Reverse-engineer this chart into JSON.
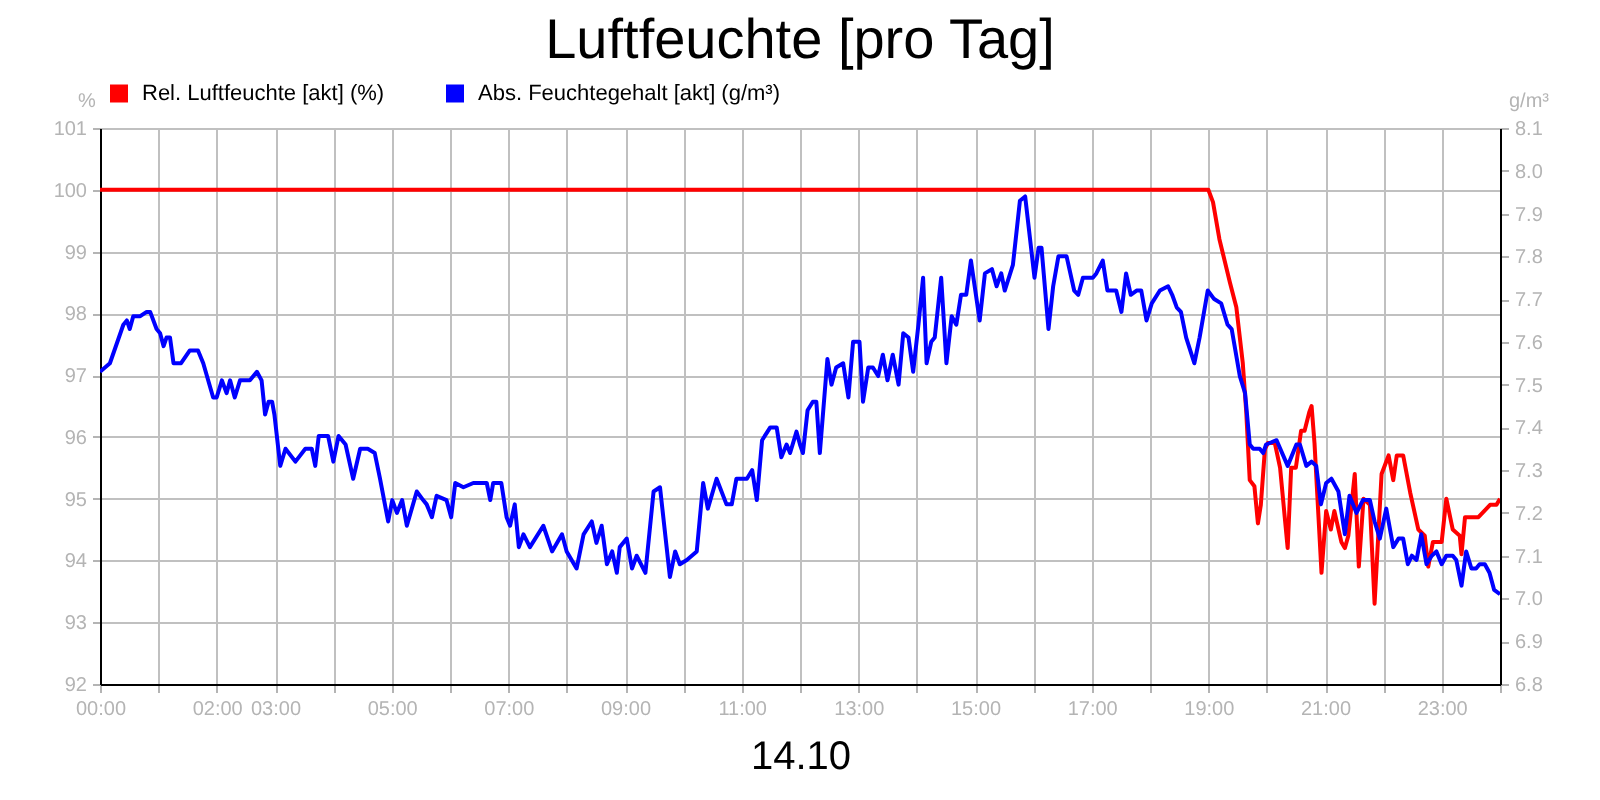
{
  "chart_data": {
    "type": "line",
    "title": "Luftfeuchte [pro Tag]",
    "xlabel": "14.10",
    "ylabel": "%",
    "y2label": "g/m³",
    "xlim": [
      0,
      24
    ],
    "xticks": [
      {
        "value": 0,
        "label": "00:00"
      },
      {
        "value": 1,
        "label": null
      },
      {
        "value": 2,
        "label": "02:00"
      },
      {
        "value": 3,
        "label": "03:00"
      },
      {
        "value": 4,
        "label": null
      },
      {
        "value": 5,
        "label": "05:00"
      },
      {
        "value": 6,
        "label": null
      },
      {
        "value": 7,
        "label": "07:00"
      },
      {
        "value": 8,
        "label": null
      },
      {
        "value": 9,
        "label": "09:00"
      },
      {
        "value": 10,
        "label": null
      },
      {
        "value": 11,
        "label": "11:00"
      },
      {
        "value": 12,
        "label": null
      },
      {
        "value": 13,
        "label": "13:00"
      },
      {
        "value": 14,
        "label": null
      },
      {
        "value": 15,
        "label": "15:00"
      },
      {
        "value": 16,
        "label": null
      },
      {
        "value": 17,
        "label": "17:00"
      },
      {
        "value": 18,
        "label": null
      },
      {
        "value": 19,
        "label": "19:00"
      },
      {
        "value": 20,
        "label": null
      },
      {
        "value": 21,
        "label": "21:00"
      },
      {
        "value": 22,
        "label": null
      },
      {
        "value": 23,
        "label": "23:00"
      },
      {
        "value": 24,
        "label": null
      }
    ],
    "ylim": [
      92,
      101
    ],
    "yticks": [
      92,
      93,
      94,
      95,
      96,
      97,
      98,
      99,
      100,
      101
    ],
    "y2lim": [
      6.8,
      8.1
    ],
    "y2ticks": [
      6.8,
      6.9,
      {
        "value": 7.0,
        "label": "7.0"
      },
      7.1,
      7.2,
      7.3,
      7.4,
      7.5,
      7.6,
      7.7,
      7.8,
      7.9,
      {
        "value": 8.0,
        "label": "8.0"
      },
      8.1
    ],
    "grid": true,
    "legend": "top left",
    "series": [
      {
        "name": "Rel. Luftfeuchte [akt] (%)",
        "color": "#ff0000",
        "axis": "y",
        "x": [
          0,
          19.0,
          19.08,
          19.19,
          19.37,
          19.48,
          19.59,
          19.65,
          19.71,
          19.79,
          19.85,
          19.9,
          19.97,
          20.02,
          20.14,
          20.23,
          20.31,
          20.36,
          20.42,
          20.5,
          20.59,
          20.65,
          20.73,
          20.77,
          20.82,
          20.86,
          20.94,
          21.02,
          21.1,
          21.16,
          21.28,
          21.34,
          21.4,
          21.51,
          21.58,
          21.66,
          21.77,
          21.85,
          21.97,
          22.09,
          22.17,
          22.23,
          22.34,
          22.46,
          22.6,
          22.71,
          22.77,
          22.85,
          23.0,
          23.08,
          23.19,
          23.31,
          23.34,
          23.4,
          23.54,
          23.63,
          23.83,
          23.94,
          24.0
        ],
        "values": [
          100,
          100,
          99.8,
          99.2,
          98.5,
          98.1,
          97.2,
          96.4,
          95.3,
          95.2,
          94.6,
          94.9,
          95.8,
          95.9,
          95.9,
          95.5,
          94.7,
          94.2,
          95.5,
          95.5,
          96.1,
          96.1,
          96.4,
          96.5,
          95.9,
          95.2,
          93.8,
          94.8,
          94.5,
          94.8,
          94.3,
          94.2,
          94.4,
          95.4,
          93.9,
          95.0,
          94.9,
          93.3,
          95.4,
          95.7,
          95.3,
          95.7,
          95.7,
          95.1,
          94.5,
          94.4,
          93.9,
          94.3,
          94.3,
          95.0,
          94.5,
          94.4,
          94.1,
          94.7,
          94.7,
          94.7,
          94.9,
          94.9,
          95.0
        ]
      },
      {
        "name": "Abs. Feuchtegehalt [akt] (g/m³)",
        "color": "#0000ff",
        "axis": "y2",
        "x": [
          0,
          0.17,
          0.4,
          0.46,
          0.51,
          0.57,
          0.69,
          0.8,
          0.86,
          0.97,
          1.03,
          1.09,
          1.14,
          1.2,
          1.26,
          1.39,
          1.54,
          1.68,
          1.77,
          1.94,
          2.0,
          2.09,
          2.17,
          2.23,
          2.31,
          2.4,
          2.57,
          2.69,
          2.77,
          2.83,
          2.89,
          2.95,
          2.99,
          3.09,
          3.18,
          3.35,
          3.52,
          3.63,
          3.69,
          3.75,
          3.91,
          4.0,
          4.09,
          4.21,
          4.34,
          4.46,
          4.59,
          4.71,
          4.8,
          4.94,
          5.01,
          5.09,
          5.18,
          5.26,
          5.43,
          5.54,
          5.6,
          5.69,
          5.77,
          5.94,
          6.02,
          6.09,
          6.23,
          6.4,
          6.63,
          6.69,
          6.74,
          6.88,
          6.97,
          7.03,
          7.11,
          7.18,
          7.26,
          7.37,
          7.6,
          7.75,
          7.92,
          8.0,
          8.17,
          8.29,
          8.43,
          8.51,
          8.6,
          8.69,
          8.78,
          8.86,
          8.91,
          9.03,
          9.12,
          9.2,
          9.35,
          9.49,
          9.6,
          9.77,
          9.86,
          9.94,
          10.06,
          10.23,
          10.34,
          10.42,
          10.57,
          10.74,
          10.83,
          10.91,
          11.09,
          11.18,
          11.26,
          11.35,
          11.49,
          11.6,
          11.68,
          11.77,
          11.83,
          11.94,
          12.0,
          12.05,
          12.13,
          12.22,
          12.28,
          12.34,
          12.47,
          12.54,
          12.62,
          12.74,
          12.83,
          12.91,
          13.02,
          13.08,
          13.17,
          13.25,
          13.34,
          13.42,
          13.5,
          13.59,
          13.69,
          13.77,
          13.86,
          13.94,
          14.03,
          14.11,
          14.17,
          14.25,
          14.31,
          14.42,
          14.51,
          14.6,
          14.68,
          14.76,
          14.85,
          14.93,
          15.08,
          15.17,
          15.29,
          15.37,
          15.45,
          15.51,
          15.65,
          15.77,
          15.86,
          16.02,
          16.09,
          16.14,
          16.26,
          16.34,
          16.43,
          16.57,
          16.7,
          16.77,
          16.85,
          16.93,
          17.02,
          17.08,
          17.19,
          17.27,
          17.42,
          17.51,
          17.59,
          17.67,
          17.77,
          17.85,
          17.94,
          18.03,
          18.17,
          18.31,
          18.38,
          18.46,
          18.53,
          18.62,
          18.76,
          18.85,
          18.99,
          19.1,
          19.22,
          19.33,
          19.4,
          19.54,
          19.63,
          19.71,
          19.77,
          19.88,
          19.94,
          19.99,
          20.17,
          20.36,
          20.51,
          20.57,
          20.68,
          20.77,
          20.85,
          20.93,
          21.02,
          21.11,
          21.23,
          21.34,
          21.42,
          21.54,
          21.65,
          21.77,
          21.85,
          21.94,
          22.05,
          22.17,
          22.26,
          22.34,
          22.42,
          22.49,
          22.57,
          22.65,
          22.74,
          22.83,
          22.91,
          23.0,
          23.08,
          23.19,
          23.25,
          23.34,
          23.42,
          23.51,
          23.59,
          23.65,
          23.74,
          23.82,
          23.9,
          24.0
        ],
        "values": [
          7.53,
          7.55,
          7.64,
          7.65,
          7.63,
          7.66,
          7.66,
          7.67,
          7.67,
          7.63,
          7.62,
          7.59,
          7.61,
          7.61,
          7.55,
          7.55,
          7.58,
          7.58,
          7.55,
          7.47,
          7.47,
          7.51,
          7.48,
          7.51,
          7.47,
          7.51,
          7.51,
          7.53,
          7.51,
          7.43,
          7.46,
          7.46,
          7.43,
          7.31,
          7.35,
          7.32,
          7.35,
          7.35,
          7.31,
          7.38,
          7.38,
          7.32,
          7.38,
          7.36,
          7.28,
          7.35,
          7.35,
          7.34,
          7.28,
          7.18,
          7.23,
          7.2,
          7.23,
          7.17,
          7.25,
          7.23,
          7.22,
          7.19,
          7.24,
          7.23,
          7.19,
          7.27,
          7.26,
          7.27,
          7.27,
          7.23,
          7.27,
          7.27,
          7.19,
          7.17,
          7.22,
          7.12,
          7.15,
          7.12,
          7.17,
          7.11,
          7.15,
          7.11,
          7.07,
          7.15,
          7.18,
          7.13,
          7.17,
          7.08,
          7.11,
          7.06,
          7.12,
          7.14,
          7.07,
          7.1,
          7.06,
          7.25,
          7.26,
          7.05,
          7.11,
          7.08,
          7.09,
          7.11,
          7.27,
          7.21,
          7.28,
          7.22,
          7.22,
          7.28,
          7.28,
          7.3,
          7.23,
          7.37,
          7.4,
          7.4,
          7.33,
          7.36,
          7.34,
          7.39,
          7.36,
          7.34,
          7.44,
          7.46,
          7.46,
          7.34,
          7.56,
          7.5,
          7.54,
          7.55,
          7.47,
          7.6,
          7.6,
          7.46,
          7.54,
          7.54,
          7.52,
          7.57,
          7.51,
          7.57,
          7.5,
          7.62,
          7.61,
          7.53,
          7.64,
          7.75,
          7.55,
          7.6,
          7.61,
          7.75,
          7.55,
          7.66,
          7.64,
          7.71,
          7.71,
          7.79,
          7.65,
          7.76,
          7.77,
          7.73,
          7.76,
          7.72,
          7.78,
          7.93,
          7.94,
          7.75,
          7.82,
          7.82,
          7.63,
          7.73,
          7.8,
          7.8,
          7.72,
          7.71,
          7.75,
          7.75,
          7.75,
          7.76,
          7.79,
          7.72,
          7.72,
          7.67,
          7.76,
          7.71,
          7.72,
          7.72,
          7.65,
          7.69,
          7.72,
          7.73,
          7.71,
          7.68,
          7.67,
          7.61,
          7.55,
          7.61,
          7.72,
          7.7,
          7.69,
          7.64,
          7.63,
          7.52,
          7.48,
          7.36,
          7.35,
          7.35,
          7.34,
          7.36,
          7.37,
          7.31,
          7.36,
          7.36,
          7.31,
          7.32,
          7.31,
          7.22,
          7.27,
          7.28,
          7.25,
          7.15,
          7.24,
          7.2,
          7.23,
          7.23,
          7.18,
          7.14,
          7.21,
          7.12,
          7.14,
          7.14,
          7.08,
          7.1,
          7.09,
          7.15,
          7.08,
          7.1,
          7.11,
          7.08,
          7.1,
          7.1,
          7.09,
          7.03,
          7.11,
          7.07,
          7.07,
          7.08,
          7.08,
          7.06,
          7.02,
          7.01
        ]
      }
    ]
  }
}
